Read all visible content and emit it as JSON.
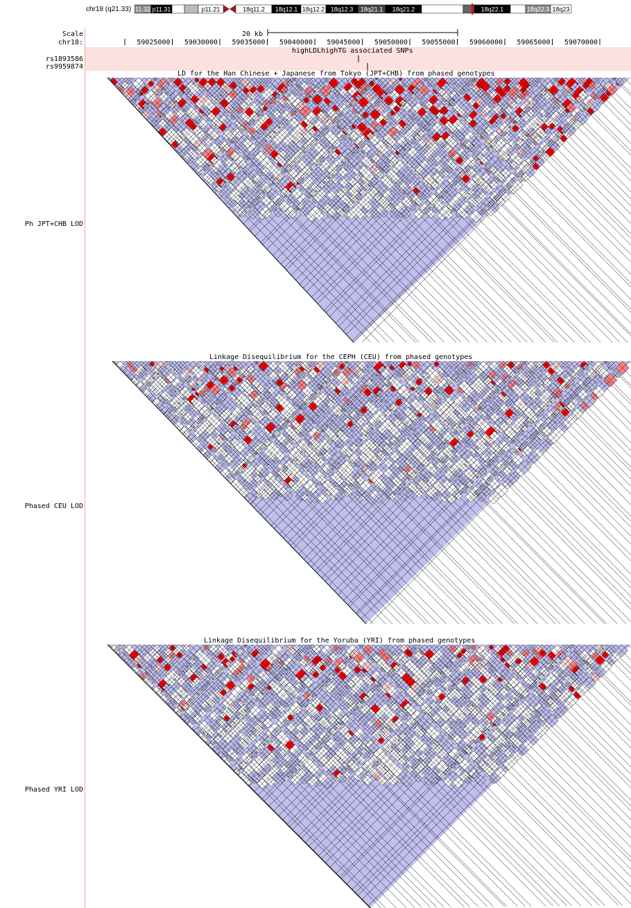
{
  "ideogram": {
    "label": "chr18 (q21.33)",
    "bands": [
      {
        "name": "11.32",
        "shade": "#888888",
        "text": "#ffffff"
      },
      {
        "name": "p11.31",
        "shade": "#000000",
        "text": "#ffffff"
      },
      {
        "name": "",
        "shade": "#ffffff",
        "text": "#000000"
      },
      {
        "name": "",
        "shade": "#bbbbbb",
        "text": "#000000"
      },
      {
        "name": "p11.21",
        "shade": "#ffffff",
        "text": "#000000"
      },
      {
        "name": "",
        "shade": "#8b2020",
        "text": "#ffffff",
        "centromere": true
      },
      {
        "name": "18q11.2",
        "shade": "#ffffff",
        "text": "#000000"
      },
      {
        "name": "18q12.1",
        "shade": "#000000",
        "text": "#ffffff"
      },
      {
        "name": "18q12.2",
        "shade": "#ffffff",
        "text": "#000000"
      },
      {
        "name": "18q12.3",
        "shade": "#000000",
        "text": "#ffffff"
      },
      {
        "name": "18q21.1",
        "shade": "#444444",
        "text": "#ffffff"
      },
      {
        "name": "18q21.2",
        "shade": "#000000",
        "text": "#ffffff"
      },
      {
        "name": "",
        "shade": "#ffffff",
        "text": "#000000"
      },
      {
        "name": "",
        "shade": "#666666",
        "text": "#ffffff",
        "highlight": true
      },
      {
        "name": "18q22.1",
        "shade": "#000000",
        "text": "#ffffff"
      },
      {
        "name": "",
        "shade": "#ffffff",
        "text": "#000000"
      },
      {
        "name": "18q22.3",
        "shade": "#888888",
        "text": "#ffffff"
      },
      {
        "name": "18q23",
        "shade": "#ffffff",
        "text": "#000000"
      }
    ],
    "highlight_color": "#dd0000"
  },
  "scale": {
    "label": "Scale",
    "bar_label": "20 kb"
  },
  "ruler": {
    "label": "chr18:",
    "ticks": [
      "59025000",
      "59030000",
      "59035000",
      "59040000",
      "59045000",
      "59050000",
      "59055000",
      "59060000",
      "59065000",
      "59070000"
    ]
  },
  "snp_track": {
    "title": "highLDLhighTG associated SNPs",
    "snps": [
      "rs1893586",
      "rs9959874"
    ],
    "band_color": "#fde0e0"
  },
  "ld_tracks": [
    {
      "label": "Ph JPT+CHB LOD",
      "title": "LD for the Han Chinese + Japanese from Tokyo (JPT+CHB) from phased genotypes"
    },
    {
      "label": "Phased CEU LOD",
      "title": "Linkage Disequilibrium for the CEPH (CEU) from phased genotypes"
    },
    {
      "label": "Phased YRI LOD",
      "title": "Linkage Disequilibrium for the Yoruba (YRI) from phased genotypes"
    }
  ],
  "colors": {
    "ld_strong": "#ff0000",
    "ld_medium": "#ff8080",
    "ld_weak": "#ffd0d0",
    "ld_low_lod": "#c0c0ee",
    "ld_none": "#ffffff",
    "divider": "#f5a8a8"
  }
}
